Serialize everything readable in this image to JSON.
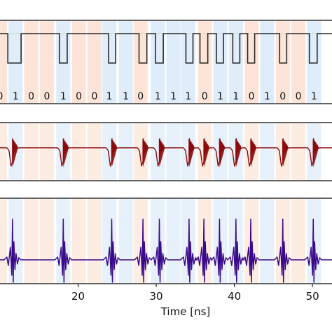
{
  "chart_data": [
    {
      "type": "line",
      "panel": "digital-bit-sequence",
      "x_range": [
        10,
        52
      ],
      "bit_labels": [
        "0",
        "1",
        "0",
        "0",
        "1",
        "0",
        "0",
        "1",
        "1",
        "0",
        "1",
        "1",
        "1",
        "0",
        "1",
        "1",
        "0",
        "1",
        "0",
        "0",
        "1"
      ],
      "bit_slots_x": [
        10.0,
        12.0,
        14.0,
        16.0,
        18.1,
        20.1,
        22.1,
        24.0,
        26.1,
        28.0,
        30.2,
        32.2,
        34.1,
        36.2,
        38.2,
        40.2,
        42.2,
        44.2,
        46.2,
        48.2,
        50.2
      ],
      "pulses": [
        {
          "start": 11.0,
          "end": 12.7
        },
        {
          "start": 17.6,
          "end": 18.6
        },
        {
          "start": 23.9,
          "end": 24.8
        },
        {
          "start": 27.8,
          "end": 28.8
        },
        {
          "start": 29.9,
          "end": 30.9
        },
        {
          "start": 33.8,
          "end": 34.7
        },
        {
          "start": 35.6,
          "end": 36.6
        },
        {
          "start": 37.7,
          "end": 38.6
        },
        {
          "start": 39.8,
          "end": 40.7
        },
        {
          "start": 41.7,
          "end": 42.6
        },
        {
          "start": 45.8,
          "end": 46.7
        },
        {
          "start": 49.6,
          "end": 50.6
        }
      ],
      "color": "#2b2b2b"
    },
    {
      "type": "line",
      "panel": "filtered-response",
      "events_x": [
        11.6,
        18.1,
        24.3,
        28.3,
        30.4,
        34.2,
        36.1,
        38.1,
        40.2,
        42.1,
        46.2,
        50.1
      ],
      "color": "#8b0a0a"
    },
    {
      "type": "line",
      "panel": "derivative-spikes",
      "events_x": [
        11.6,
        18.1,
        24.3,
        28.3,
        30.4,
        34.2,
        36.1,
        38.1,
        40.2,
        42.1,
        46.2,
        50.1
      ],
      "color": "#3b0a8a"
    }
  ],
  "axis": {
    "xlabel": "Time [ns]",
    "xlim": [
      10,
      52.5
    ],
    "ticks": [
      {
        "value": 20,
        "label": "20"
      },
      {
        "value": 30,
        "label": "30"
      },
      {
        "value": 40,
        "label": "40"
      },
      {
        "value": 50,
        "label": "50"
      }
    ]
  },
  "colors": {
    "bit1_band": "#d4e6f8",
    "bit0_band": "#fbdccb",
    "frame": "#222222"
  }
}
